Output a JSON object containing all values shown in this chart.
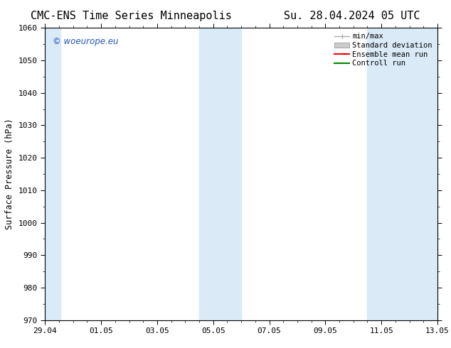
{
  "title": "CMC-ENS Time Series Minneapolis",
  "title_date": "Su. 28.04.2024 05 UTC",
  "ylabel": "Surface Pressure (hPa)",
  "ylim": [
    970,
    1060
  ],
  "yticks": [
    970,
    980,
    990,
    1000,
    1010,
    1020,
    1030,
    1040,
    1050,
    1060
  ],
  "xtick_labels": [
    "29.04",
    "01.05",
    "03.05",
    "05.05",
    "07.05",
    "09.05",
    "11.05",
    "13.05"
  ],
  "bg_color": "#ffffff",
  "plot_bg_color": "#ffffff",
  "shaded_band_color": "#daeaf7",
  "legend_labels": [
    "min/max",
    "Standard deviation",
    "Ensemble mean run",
    "Controll run"
  ],
  "legend_minmax_color": "#aaaaaa",
  "legend_std_color": "#cccccc",
  "legend_ensemble_color": "#ff0000",
  "legend_control_color": "#008800",
  "watermark": "© woeurope.eu",
  "watermark_color": "#2255bb",
  "title_fontsize": 11,
  "axis_fontsize": 8.5,
  "tick_fontsize": 8,
  "legend_fontsize": 7.5
}
